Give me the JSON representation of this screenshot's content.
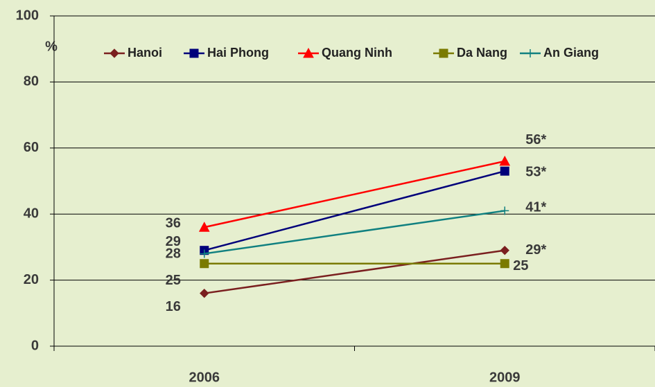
{
  "chart_data": {
    "type": "line",
    "y_label": "%",
    "categories": [
      "2006",
      "2009"
    ],
    "series": [
      {
        "name": "Hanoi",
        "color": "#7a1f1f",
        "marker": "diamond",
        "values": [
          16,
          29
        ],
        "value_labels": [
          "16",
          "29*"
        ]
      },
      {
        "name": "Hai Phong",
        "color": "#00007a",
        "marker": "square",
        "values": [
          29,
          53
        ],
        "value_labels": [
          "29",
          "53*"
        ]
      },
      {
        "name": "Quang Ninh",
        "color": "#ff0000",
        "marker": "triangle",
        "values": [
          36,
          56
        ],
        "value_labels": [
          "36",
          "56*"
        ]
      },
      {
        "name": "Da Nang",
        "color": "#7a7a00",
        "marker": "square",
        "values": [
          25,
          25
        ],
        "value_labels": [
          "25",
          "25"
        ]
      },
      {
        "name": "An Giang",
        "color": "#108080",
        "marker": "plus",
        "values": [
          28,
          41
        ],
        "value_labels": [
          "28",
          "41*"
        ]
      }
    ],
    "ylim": [
      0,
      100
    ],
    "yticks": [
      0,
      20,
      40,
      60,
      80,
      100
    ],
    "grid": true,
    "legend": "top"
  }
}
